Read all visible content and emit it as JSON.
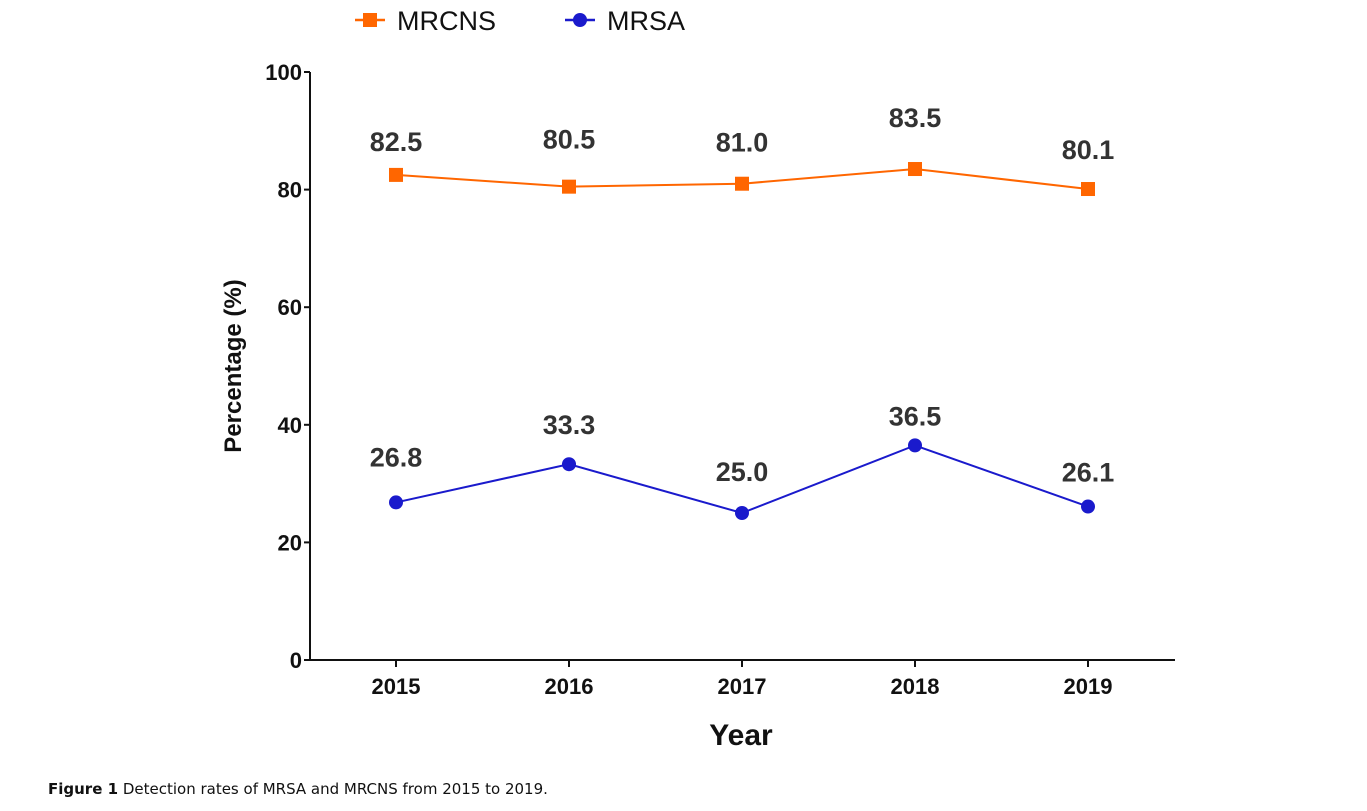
{
  "chart_data": {
    "type": "line",
    "title": "",
    "xlabel": "Year",
    "ylabel": "Percentage (%)",
    "categories": [
      "2015",
      "2016",
      "2017",
      "2018",
      "2019"
    ],
    "ylim": [
      0,
      100
    ],
    "yticks": [
      0,
      20,
      40,
      60,
      80,
      100
    ],
    "grid": false,
    "legend_position": "top-center",
    "series": [
      {
        "name": "MRCNS",
        "color": "#ff6600",
        "marker": "square",
        "values": [
          82.5,
          80.5,
          81.0,
          83.5,
          80.1
        ],
        "labels": [
          "82.5",
          "80.5",
          "81.0",
          "83.5",
          "80.1"
        ]
      },
      {
        "name": "MRSA",
        "color": "#1a1acc",
        "marker": "circle",
        "values": [
          26.8,
          33.3,
          25.0,
          36.5,
          26.1
        ],
        "labels": [
          "26.8",
          "33.3",
          "25.0",
          "36.5",
          "26.1"
        ]
      }
    ]
  },
  "caption": {
    "label": "Figure 1",
    "text": "Detection rates of MRSA and MRCNS from 2015 to 2019."
  }
}
